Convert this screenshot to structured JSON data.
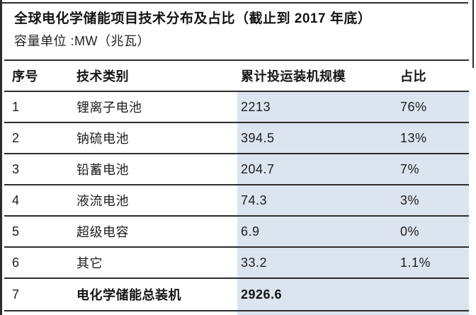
{
  "chart_data": {
    "type": "table",
    "title": "全球电化学储能项目技术分布及占比（截止到 2017 年底）",
    "subtitle": "容量单位 :MW（兆瓦）",
    "unit": "MW",
    "columns": {
      "no": "序号",
      "tech": "技术类别",
      "capacity": "累计投运装机规模",
      "share": "占比"
    },
    "rows": [
      {
        "no": "1",
        "tech": "锂离子电池",
        "capacity": "2213",
        "share": "76%"
      },
      {
        "no": "2",
        "tech": "钠硫电池",
        "capacity": "394.5",
        "share": "13%"
      },
      {
        "no": "3",
        "tech": "铅蓄电池",
        "capacity": "204.7",
        "share": "7%"
      },
      {
        "no": "4",
        "tech": "液流电池",
        "capacity": "74.3",
        "share": "3%"
      },
      {
        "no": "5",
        "tech": "超级电容",
        "capacity": "6.9",
        "share": "0%"
      },
      {
        "no": "6",
        "tech": "其它",
        "capacity": "33.2",
        "share": "1.1%"
      },
      {
        "no": "7",
        "tech": "电化学储能总装机",
        "capacity": "2926.6",
        "share": ""
      }
    ]
  },
  "colors": {
    "highlight": "#dce4f0",
    "rule": "#2d2d2d",
    "text": "#1d1d1d",
    "background": "#ffffff"
  }
}
